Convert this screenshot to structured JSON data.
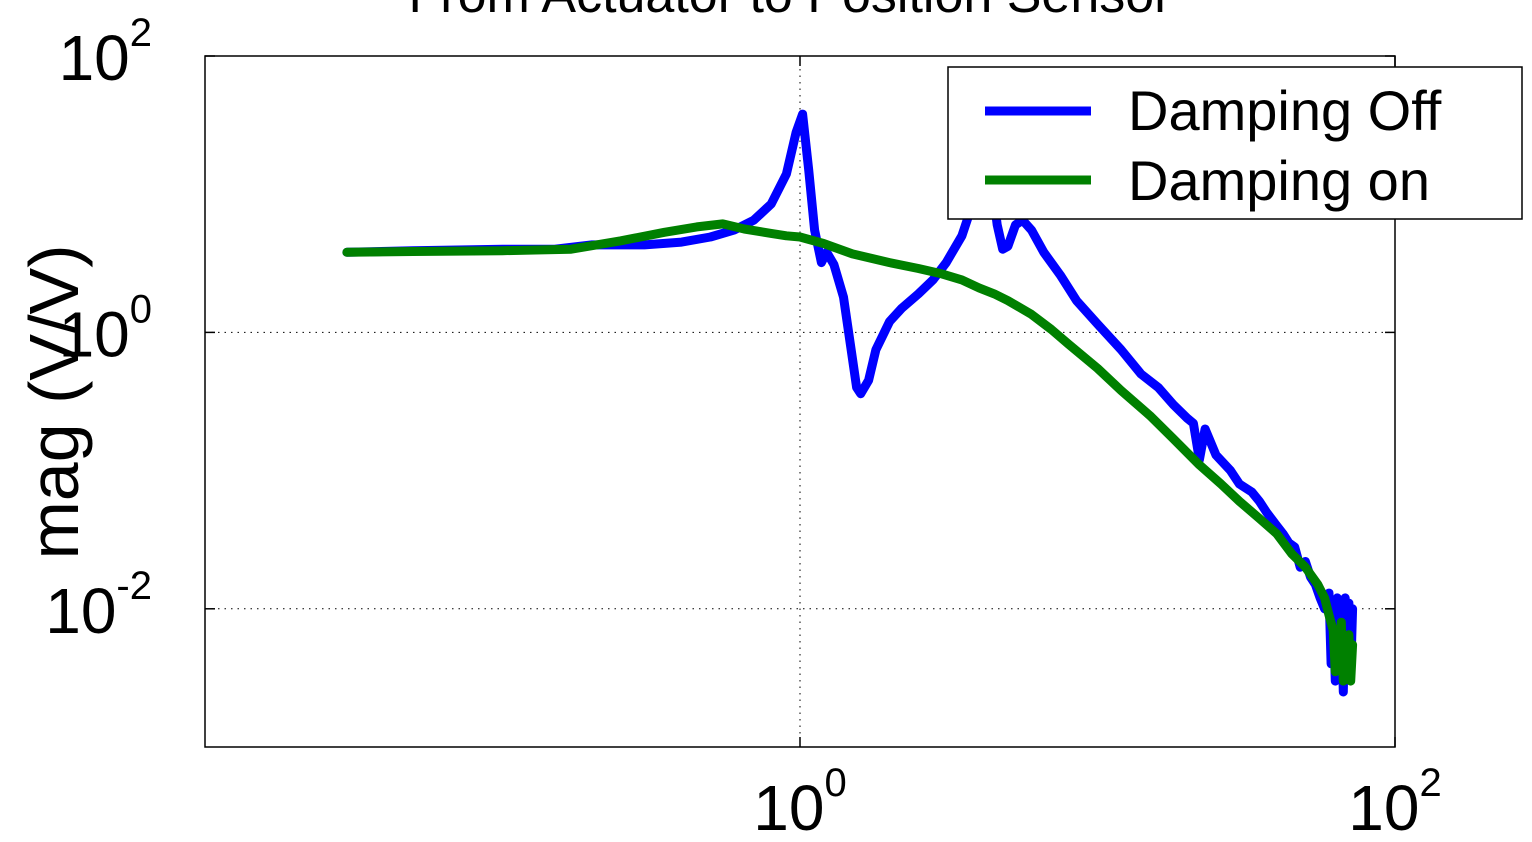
{
  "chart_data": {
    "type": "line",
    "title": "From Actuator to Position Sensor",
    "xlabel": "",
    "ylabel": "mag (V/V)",
    "xscale": "log",
    "yscale": "log",
    "xlim": [
      0.01,
      100
    ],
    "ylim": [
      0.001,
      100
    ],
    "grid": true,
    "legend_position": "top-right",
    "x_ticks": [
      {
        "value": 1,
        "base": "10",
        "exp": "0"
      },
      {
        "value": 100,
        "base": "10",
        "exp": "2"
      }
    ],
    "y_ticks": [
      {
        "value": 0.01,
        "base": "10",
        "exp": "-2"
      },
      {
        "value": 1,
        "base": "10",
        "exp": "0"
      },
      {
        "value": 100,
        "base": "10",
        "exp": "2"
      }
    ],
    "series": [
      {
        "name": "Damping Off",
        "color": "#0000ff",
        "points": [
          [
            0.03,
            3.8
          ],
          [
            0.05,
            3.9
          ],
          [
            0.1,
            4.0
          ],
          [
            0.15,
            4.0
          ],
          [
            0.2,
            4.3
          ],
          [
            0.3,
            4.3
          ],
          [
            0.4,
            4.5
          ],
          [
            0.5,
            4.9
          ],
          [
            0.6,
            5.5
          ],
          [
            0.7,
            6.5
          ],
          [
            0.8,
            8.5
          ],
          [
            0.9,
            14
          ],
          [
            0.97,
            28
          ],
          [
            1.02,
            38
          ],
          [
            1.07,
            15
          ],
          [
            1.12,
            5.5
          ],
          [
            1.18,
            3.2
          ],
          [
            1.23,
            3.8
          ],
          [
            1.3,
            3.1
          ],
          [
            1.4,
            1.8
          ],
          [
            1.5,
            0.65
          ],
          [
            1.55,
            0.4
          ],
          [
            1.6,
            0.36
          ],
          [
            1.7,
            0.45
          ],
          [
            1.8,
            0.75
          ],
          [
            2.0,
            1.2
          ],
          [
            2.2,
            1.5
          ],
          [
            2.5,
            1.9
          ],
          [
            2.8,
            2.4
          ],
          [
            3.1,
            3.2
          ],
          [
            3.5,
            5.0
          ],
          [
            3.8,
            8.5
          ],
          [
            4.0,
            15
          ],
          [
            4.2,
            20
          ],
          [
            4.4,
            13
          ],
          [
            4.6,
            6.0
          ],
          [
            4.8,
            4.0
          ],
          [
            5.0,
            4.2
          ],
          [
            5.3,
            6.0
          ],
          [
            5.6,
            6.5
          ],
          [
            6.0,
            5.5
          ],
          [
            6.6,
            3.8
          ],
          [
            7.5,
            2.6
          ],
          [
            8.5,
            1.7
          ],
          [
            10,
            1.15
          ],
          [
            12,
            0.75
          ],
          [
            14,
            0.5
          ],
          [
            16,
            0.4
          ],
          [
            18,
            0.3
          ],
          [
            20,
            0.24
          ],
          [
            21,
            0.22
          ],
          [
            22,
            0.12
          ],
          [
            23,
            0.2
          ],
          [
            25,
            0.13
          ],
          [
            28,
            0.1
          ],
          [
            30,
            0.08
          ],
          [
            33,
            0.07
          ],
          [
            35,
            0.06
          ],
          [
            37,
            0.05
          ],
          [
            40,
            0.04
          ],
          [
            42,
            0.035
          ],
          [
            44,
            0.03
          ],
          [
            46,
            0.028
          ],
          [
            48,
            0.02
          ],
          [
            50,
            0.022
          ],
          [
            52,
            0.017
          ],
          [
            54,
            0.015
          ],
          [
            56,
            0.012
          ],
          [
            58,
            0.01
          ],
          [
            60,
            0.013
          ],
          [
            61,
            0.004
          ],
          [
            62,
            0.009
          ],
          [
            63,
            0.003
          ],
          [
            64,
            0.012
          ],
          [
            65,
            0.005
          ],
          [
            66,
            0.01
          ],
          [
            67,
            0.0025
          ],
          [
            68,
            0.012
          ],
          [
            69,
            0.004
          ],
          [
            70,
            0.011
          ],
          [
            71,
            0.0035
          ],
          [
            72,
            0.01
          ]
        ]
      },
      {
        "name": "Damping on",
        "color": "#008000",
        "points": [
          [
            0.03,
            3.8
          ],
          [
            0.05,
            3.85
          ],
          [
            0.1,
            3.9
          ],
          [
            0.17,
            4.0
          ],
          [
            0.25,
            4.6
          ],
          [
            0.35,
            5.3
          ],
          [
            0.45,
            5.8
          ],
          [
            0.55,
            6.1
          ],
          [
            0.65,
            5.6
          ],
          [
            0.8,
            5.2
          ],
          [
            0.9,
            5.0
          ],
          [
            1.0,
            4.9
          ],
          [
            1.2,
            4.4
          ],
          [
            1.5,
            3.7
          ],
          [
            2.0,
            3.2
          ],
          [
            2.5,
            2.9
          ],
          [
            3.0,
            2.65
          ],
          [
            3.5,
            2.4
          ],
          [
            4.0,
            2.1
          ],
          [
            4.5,
            1.9
          ],
          [
            5.0,
            1.7
          ],
          [
            6.0,
            1.35
          ],
          [
            7.0,
            1.05
          ],
          [
            8.0,
            0.82
          ],
          [
            10,
            0.55
          ],
          [
            12,
            0.38
          ],
          [
            15,
            0.25
          ],
          [
            18,
            0.17
          ],
          [
            22,
            0.11
          ],
          [
            26,
            0.08
          ],
          [
            30,
            0.06
          ],
          [
            35,
            0.045
          ],
          [
            40,
            0.035
          ],
          [
            45,
            0.025
          ],
          [
            50,
            0.02
          ],
          [
            55,
            0.015
          ],
          [
            58,
            0.012
          ],
          [
            60,
            0.009
          ],
          [
            62,
            0.007
          ],
          [
            63,
            0.0035
          ],
          [
            64,
            0.006
          ],
          [
            65,
            0.004
          ],
          [
            66,
            0.008
          ],
          [
            67,
            0.003
          ],
          [
            68,
            0.006
          ],
          [
            69,
            0.0045
          ],
          [
            70,
            0.0065
          ],
          [
            71,
            0.003
          ],
          [
            72,
            0.0055
          ]
        ]
      }
    ]
  }
}
